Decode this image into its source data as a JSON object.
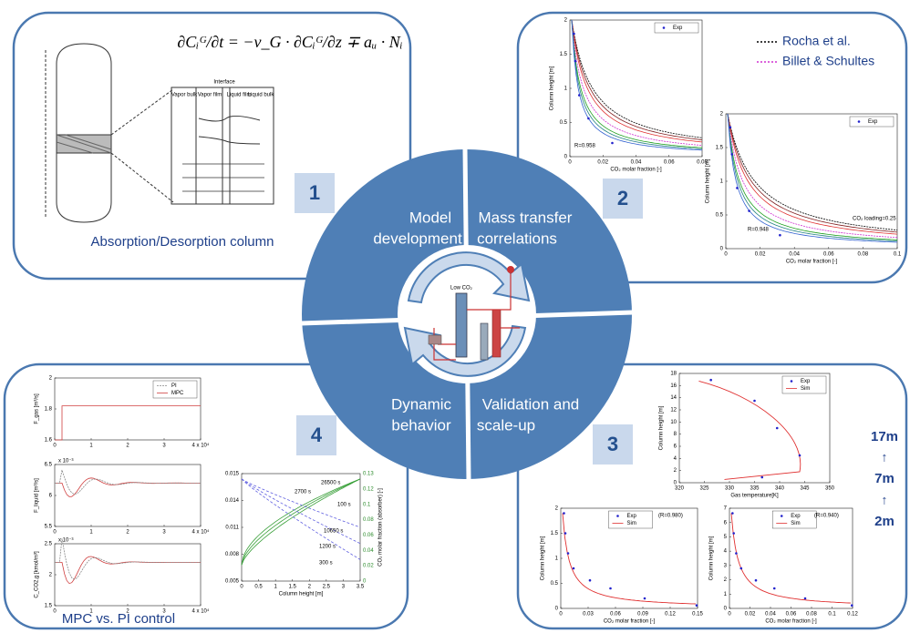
{
  "panel1": {
    "number": "1",
    "equation": "∂Cᵢᴳ/∂t = −v_G · ∂Cᵢᴳ/∂z ∓ aᵤ · Nᵢ",
    "interface": "Interface",
    "zones": [
      "Vapor bulk",
      "Vapor film",
      "Liquid film",
      "Liquid bulk"
    ],
    "caption": "Absorption/Desorption column"
  },
  "panel2": {
    "number": "2",
    "models": [
      "Rocha et al.",
      "Billet & Schultes"
    ],
    "plots": [
      {
        "legend": [
          "Exp"
        ],
        "xlabel": "CO₂ molar fraction [-]",
        "ylabel": "Column height [m]",
        "xticks": [
          "0",
          "0.02",
          "0.04",
          "0.06",
          "0.08"
        ],
        "yticks": [
          "0",
          "0.5",
          "1",
          "1.5",
          "2"
        ],
        "notes": [
          "R=0.958"
        ]
      },
      {
        "legend": [
          "Exp"
        ],
        "xlabel": "CO₂ molar fraction [-]",
        "ylabel": "Column height [m]",
        "xticks": [
          "0",
          "0.02",
          "0.04",
          "0.06",
          "0.08",
          "0.1"
        ],
        "yticks": [
          "0",
          "0.5",
          "1",
          "1.5",
          "2"
        ],
        "notes": [
          "R=0.948",
          "CO₂ loading=0.25"
        ]
      }
    ]
  },
  "panel3": {
    "number": "3",
    "heights": [
      "17m",
      "7m",
      "2m"
    ],
    "plots": [
      {
        "legend": [
          "Exp",
          "Sim"
        ],
        "xlabel": "Gas temperature[K]",
        "ylabel": "Column height [m]",
        "xticks": [
          "320",
          "325",
          "330",
          "335",
          "340",
          "345",
          "350"
        ],
        "yticks": [
          "0",
          "2",
          "4",
          "6",
          "8",
          "10",
          "12",
          "14",
          "16",
          "18"
        ],
        "notes": []
      },
      {
        "legend": [
          "Exp",
          "Sim"
        ],
        "xlabel": "CO₂ molar fraction [-]",
        "ylabel": "Column height [m]",
        "xticks": [
          "0",
          "0.03",
          "0.06",
          "0.09",
          "0.12",
          "0.15"
        ],
        "yticks": [
          "0",
          "0.5",
          "1",
          "1.5",
          "2"
        ],
        "notes": [
          "(R=0.980)"
        ]
      },
      {
        "legend": [
          "Exp",
          "Sim"
        ],
        "xlabel": "CO₂ molar fraction [-]",
        "ylabel": "Column height [m]",
        "xticks": [
          "0",
          "0.02",
          "0.04",
          "0.06",
          "0.08",
          "0.1",
          "0.12"
        ],
        "yticks": [
          "0",
          "1",
          "2",
          "3",
          "4",
          "5",
          "6",
          "7"
        ],
        "notes": [
          "(R=0.940)"
        ]
      }
    ]
  },
  "panel4": {
    "number": "4",
    "caption": "MPC vs. PI control",
    "plots": [
      {
        "legend": [
          "PI",
          "MPC"
        ],
        "ylabel": "F_gas [m³/s]",
        "xticks": [
          "0",
          "1",
          "2",
          "3",
          "4 x 10⁴"
        ],
        "yticks": [
          "1.6",
          "1.8",
          "2"
        ],
        "notes": []
      },
      {
        "ylabel": "F_liquid [m³/s]",
        "xticks": [
          "0",
          "1",
          "2",
          "3",
          "4 x 10⁴"
        ],
        "yticks": [
          "5.5",
          "6",
          "6.5"
        ],
        "notes": [
          "x 10⁻³"
        ]
      },
      {
        "ylabel": "C_CO2,g [kmol/m³]",
        "xticks": [
          "0",
          "1",
          "2",
          "3",
          "4 x 10⁴"
        ],
        "yticks": [
          "1.5",
          "2",
          "2.5"
        ],
        "notes": [
          "x 10⁻³"
        ]
      },
      {
        "xlabel": "Column height [m]",
        "ylabel": "CO₂ molar fraction (absorber) [-]",
        "xticks": [
          "0",
          "0.5",
          "1",
          "1.5",
          "2",
          "2.5",
          "3",
          "3.5"
        ],
        "yticks": [
          "0.005",
          "0.008",
          "0.011",
          "0.014",
          "0.015"
        ],
        "y2ticks": [
          "0",
          "0.02",
          "0.04",
          "0.06",
          "0.08",
          "0.1",
          "0.12",
          "0.13"
        ],
        "notes": [
          "26500 s",
          "2700 s",
          "100 s",
          "10650 s",
          "1200 s",
          "300 s"
        ]
      }
    ]
  },
  "center": {
    "quadrants": [
      [
        "Model",
        "development"
      ],
      [
        "Mass transfer",
        "correlations"
      ],
      [
        "Dynamic",
        "behavior"
      ],
      [
        "Validation and",
        "scale-up"
      ]
    ],
    "process_label": "Low CO₂"
  }
}
